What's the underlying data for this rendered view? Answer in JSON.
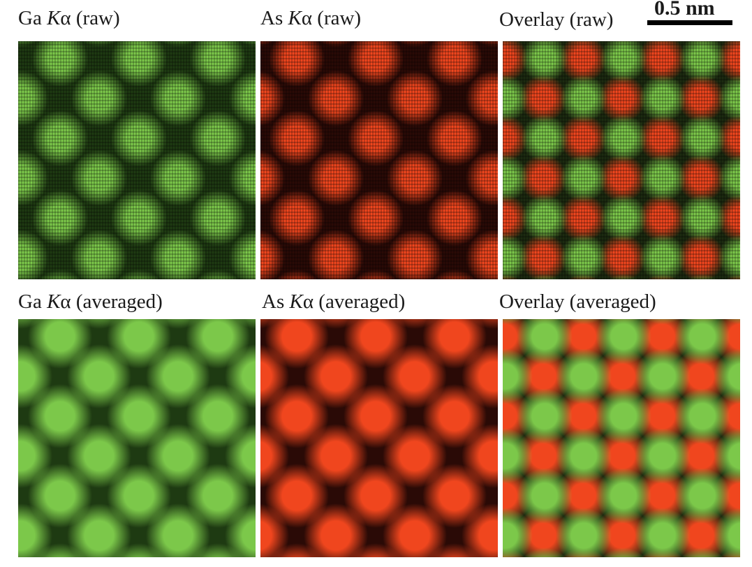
{
  "figure": {
    "scale_bar": {
      "label": "0.5 nm"
    },
    "rows": [
      {
        "name": "raw",
        "panels": [
          {
            "element": "Ga",
            "line": "K",
            "greek": "α",
            "suffix": "(raw)",
            "prefix": "Ga",
            "type": "ga",
            "smooth": false
          },
          {
            "element": "As",
            "line": "K",
            "greek": "α",
            "suffix": "(raw)",
            "prefix": "As",
            "type": "as",
            "smooth": false
          },
          {
            "element": "Overlay",
            "prefix": "Overlay",
            "line": "",
            "greek": "",
            "suffix": "(raw)",
            "type": "overlay",
            "smooth": false
          }
        ]
      },
      {
        "name": "averaged",
        "panels": [
          {
            "element": "Ga",
            "line": "K",
            "greek": "α",
            "suffix": "(averaged)",
            "prefix": "Ga",
            "type": "ga",
            "smooth": true
          },
          {
            "element": "As",
            "line": "K",
            "greek": "α",
            "suffix": "(averaged)",
            "prefix": "As",
            "type": "as",
            "smooth": true
          },
          {
            "element": "Overlay",
            "prefix": "Overlay",
            "line": "",
            "greek": "",
            "suffix": "(averaged)",
            "type": "overlay",
            "smooth": true
          }
        ]
      }
    ],
    "colors": {
      "ga": "#7cc84a",
      "ga_bg": "#1e3a12",
      "as": "#f0461e",
      "as_bg": "#2a0a06",
      "overlay_bg": "#1c2a10"
    }
  }
}
